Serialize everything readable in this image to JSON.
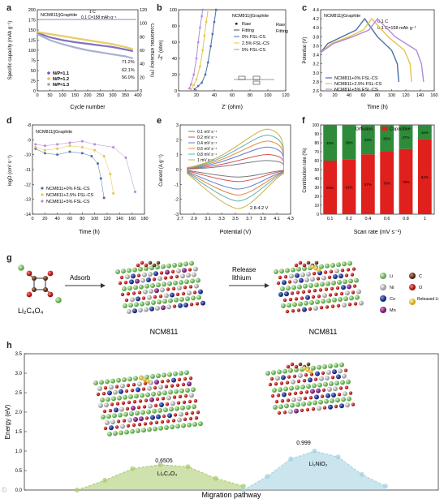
{
  "panels": {
    "a": {
      "letter": "a",
      "title": "NCM811||Graphite",
      "rate1": "1 C",
      "rate2": "0.1 C=158 mAh g⁻¹",
      "ylabel": "Specific capacity (mAh g⁻¹)",
      "ylabel_right": "Coulombic efficiency (%)",
      "xlabel": "Cycle number",
      "xticks": [
        "0",
        "50",
        "100",
        "150",
        "200",
        "250",
        "300",
        "350",
        "400"
      ],
      "yticks": [
        "0",
        "25",
        "50",
        "75",
        "100",
        "125",
        "150",
        "175",
        "200"
      ],
      "yticks_right": [
        "0",
        "20",
        "40",
        "60",
        "80",
        "100",
        "120"
      ],
      "legend": [
        "N/P=1.1",
        "N/P=1.2",
        "N/P=1.3"
      ],
      "annotations": [
        "71.2%",
        "62.1%",
        "56.0%"
      ],
      "colors": [
        "#6b5bb5",
        "#e8c34a",
        "#9aa3c7"
      ]
    },
    "b": {
      "letter": "b",
      "title": "NCM811||Graphite",
      "ylabel": "-Z'' (ohm)",
      "xlabel": "Z' (ohm)",
      "xticks": [
        "0",
        "20",
        "40",
        "60",
        "80",
        "100",
        "120"
      ],
      "yticks": [
        "0",
        "20",
        "40",
        "60",
        "80",
        "100"
      ],
      "legend": [
        "Raw",
        "Fitting",
        "0% FSL-CS",
        "2.5% FSL-CS",
        "5% FSL-CS"
      ],
      "side_labels": [
        "Raw",
        "Fitting"
      ],
      "colors": [
        "#4a6fa5",
        "#e8c34a",
        "#b48ad6"
      ]
    },
    "c": {
      "letter": "c",
      "title": "NCM811||Graphite",
      "rate1": "0.1 C",
      "rate2": "0.1 C=158 mAh g⁻¹",
      "ylabel": "Potential (V)",
      "xlabel": "Time (h)",
      "xticks": [
        "0",
        "20",
        "40",
        "60",
        "80",
        "100",
        "120",
        "140",
        "160"
      ],
      "yticks": [
        "2.6",
        "2.8",
        "3.0",
        "3.2",
        "3.4",
        "3.6",
        "3.8",
        "4.0",
        "4.2",
        "4.4"
      ],
      "legend": [
        "NCM811+0% FSL-CS",
        "NCM811+2.5% FSL-CS",
        "NCM811+5% FSL-CS"
      ],
      "colors": [
        "#4a6fa5",
        "#e8c34a",
        "#b48ad6"
      ]
    },
    "d": {
      "letter": "d",
      "title": "NCM811||Graphite",
      "ylabel": "logD (cm² s⁻¹)",
      "xlabel": "Time (h)",
      "xticks": [
        "0",
        "20",
        "40",
        "60",
        "80",
        "100",
        "120",
        "140",
        "160",
        "180"
      ],
      "yticks": [
        "-14",
        "-13",
        "-12",
        "-11",
        "-10",
        "-9",
        "-8"
      ],
      "legend": [
        "NCM811+0% FSL-CS",
        "NCM811+2.5% FSL-CS",
        "NCM811+5% FSL-CS"
      ],
      "colors": [
        "#4a6fa5",
        "#e8c34a",
        "#b48ad6"
      ]
    },
    "e": {
      "letter": "e",
      "ylabel": "Current (A g⁻¹)",
      "xlabel": "Potential (V)",
      "xticks": [
        "2.7",
        "2.9",
        "3.1",
        "3.3",
        "3.5",
        "3.7",
        "3.9",
        "4.1",
        "4.3"
      ],
      "yticks": [
        "-3",
        "-2",
        "-1",
        "0",
        "1",
        "2",
        "3"
      ],
      "legend": [
        "0.1 mV s⁻¹",
        "0.2 mV s⁻¹",
        "0.4 mV s⁻¹",
        "0.6 mV s⁻¹",
        "0.8 mV s⁻¹",
        "1 mV s⁻¹"
      ],
      "range_label": "2.8-4.2 V",
      "colors": [
        "#7a7a7a",
        "#d9534f",
        "#5b7bd5",
        "#e08a3c",
        "#5fb0b3",
        "#c9b14a"
      ]
    },
    "f": {
      "letter": "f",
      "ylabel": "Contribution rate (%)",
      "xlabel": "Scan rate (mV s⁻¹)",
      "legend": [
        "Diffusion",
        "Capacitive"
      ],
      "yticks": [
        "0",
        "10",
        "20",
        "30",
        "40",
        "50",
        "60",
        "70",
        "80",
        "90",
        "100"
      ],
      "colors": [
        "#2e8b3a",
        "#e0201c"
      ]
    },
    "g": {
      "letter": "g",
      "molecule_label": "Li₂C₄O₄",
      "arrow1": "Adsorb",
      "arrow2a": "Release",
      "arrow2b": "lithium",
      "struct1_label": "NCM811",
      "struct2_label": "NCM811",
      "elements": [
        {
          "name": "Li",
          "color": "#7dc36b"
        },
        {
          "name": "Ni",
          "color": "#c8c8c8"
        },
        {
          "name": "Co",
          "color": "#1f3fa8"
        },
        {
          "name": "Mn",
          "color": "#8e2c8e"
        },
        {
          "name": "C",
          "color": "#6b3a22"
        },
        {
          "name": "O",
          "color": "#d6201c"
        },
        {
          "name": "Released Li",
          "color": "#f2d34a"
        }
      ]
    },
    "h": {
      "letter": "h",
      "ylabel": "Energy (eV)",
      "xlabel": "Migration pathway",
      "yticks": [
        "0.0",
        "0.5",
        "1.0",
        "1.5",
        "2.0",
        "2.5",
        "3.0",
        "3.5"
      ],
      "barrier1_value": "0.6505",
      "barrier1_label": "Li₂C₄O₄",
      "barrier2_value": "0.999",
      "barrier2_label": "Li₂NiO₂",
      "colors": [
        "#a7c96a",
        "#9fd0de"
      ]
    }
  },
  "chart_data": [
    {
      "panel": "a",
      "type": "line",
      "xlabel": "Cycle number",
      "ylabel": "Specific capacity (mAh g⁻¹)",
      "xlim": [
        0,
        400
      ],
      "ylim": [
        0,
        200
      ],
      "series": [
        {
          "name": "N/P=1.1",
          "x": [
            0,
            50,
            100,
            150,
            200,
            250,
            300,
            350,
            380
          ],
          "y": [
            143,
            132,
            125,
            120,
            116,
            112,
            108,
            102,
            98
          ]
        },
        {
          "name": "N/P=1.2",
          "x": [
            0,
            50,
            100,
            150,
            200,
            250,
            300,
            350,
            380
          ],
          "y": [
            145,
            140,
            135,
            130,
            125,
            120,
            115,
            108,
            103
          ]
        },
        {
          "name": "N/P=1.3",
          "x": [
            0,
            50,
            100,
            150,
            200,
            250,
            300,
            350,
            380
          ],
          "y": [
            140,
            125,
            115,
            107,
            100,
            95,
            90,
            85,
            80
          ]
        }
      ],
      "coulombic_efficiency_pct": 100
    },
    {
      "panel": "b",
      "type": "scatter",
      "xlabel": "Z' (ohm)",
      "ylabel": "-Z'' (ohm)",
      "xlim": [
        0,
        120
      ],
      "ylim": [
        0,
        100
      ],
      "series": [
        {
          "name": "0% FSL-CS",
          "x": [
            18,
            22,
            26,
            30,
            33,
            36,
            38,
            40,
            42
          ],
          "y": [
            2,
            6,
            10,
            20,
            35,
            55,
            70,
            85,
            100
          ]
        },
        {
          "name": "2.5% FSL-CS",
          "x": [
            14,
            17,
            20,
            24,
            27,
            29,
            31,
            33
          ],
          "y": [
            2,
            7,
            14,
            30,
            50,
            68,
            85,
            100
          ]
        },
        {
          "name": "5% FSL-CS",
          "x": [
            12,
            14,
            17,
            20,
            22,
            24,
            26,
            27
          ],
          "y": [
            3,
            8,
            20,
            40,
            60,
            78,
            92,
            100
          ]
        }
      ]
    },
    {
      "panel": "c",
      "type": "line",
      "xlabel": "Time (h)",
      "ylabel": "Potential (V)",
      "xlim": [
        0,
        160
      ],
      "ylim": [
        2.6,
        4.4
      ],
      "series": [
        {
          "name": "NCM811+0% FSL-CS",
          "x": [
            0,
            10,
            30,
            50,
            62,
            80,
            100,
            108,
            110
          ],
          "y": [
            3.45,
            3.65,
            3.8,
            3.95,
            4.2,
            3.8,
            3.5,
            3.2,
            2.8
          ]
        },
        {
          "name": "NCM811+2.5% FSL-CS",
          "x": [
            0,
            15,
            40,
            60,
            72,
            95,
            118,
            126,
            128
          ],
          "y": [
            3.45,
            3.65,
            3.8,
            3.95,
            4.2,
            3.8,
            3.5,
            3.2,
            2.8
          ]
        },
        {
          "name": "NCM811+5% FSL-CS",
          "x": [
            0,
            18,
            45,
            68,
            80,
            105,
            135,
            142,
            145
          ],
          "y": [
            3.45,
            3.65,
            3.8,
            3.95,
            4.2,
            3.8,
            3.5,
            3.2,
            2.8
          ]
        }
      ]
    },
    {
      "panel": "d",
      "type": "scatter",
      "xlabel": "Time (h)",
      "ylabel": "logD (cm² s⁻¹)",
      "xlim": [
        0,
        180
      ],
      "ylim": [
        -14,
        -8
      ],
      "series": [
        {
          "name": "NCM811+0% FSL-CS",
          "x": [
            5,
            20,
            40,
            60,
            80,
            95,
            105,
            110,
            115
          ],
          "y": [
            -9.6,
            -9.9,
            -10.0,
            -9.8,
            -9.9,
            -10.1,
            -10.6,
            -11.6,
            -12.9
          ]
        },
        {
          "name": "NCM811+2.5% FSL-CS",
          "x": [
            5,
            20,
            40,
            60,
            80,
            100,
            115,
            125,
            130
          ],
          "y": [
            -9.5,
            -9.7,
            -9.6,
            -9.4,
            -9.5,
            -9.7,
            -10.1,
            -11.3,
            -12.6
          ]
        },
        {
          "name": "NCM811+5% FSL-CS",
          "x": [
            5,
            20,
            40,
            60,
            80,
            100,
            130,
            150,
            165
          ],
          "y": [
            -9.3,
            -9.4,
            -9.3,
            -9.2,
            -9.1,
            -9.3,
            -9.5,
            -10.2,
            -12.5
          ]
        }
      ]
    },
    {
      "panel": "e",
      "type": "line",
      "xlabel": "Potential (V)",
      "ylabel": "Current (A g⁻¹)",
      "xlim": [
        2.7,
        4.3
      ],
      "ylim": [
        -3,
        3
      ],
      "series": [
        {
          "name": "0.1 mV s⁻¹",
          "peak_anodic": 0.6,
          "peak_cathodic": -0.5
        },
        {
          "name": "0.2 mV s⁻¹",
          "peak_anodic": 1.0,
          "peak_cathodic": -0.8
        },
        {
          "name": "0.4 mV s⁻¹",
          "peak_anodic": 1.5,
          "peak_cathodic": -1.3
        },
        {
          "name": "0.6 mV s⁻¹",
          "peak_anodic": 1.9,
          "peak_cathodic": -1.7
        },
        {
          "name": "0.8 mV s⁻¹",
          "peak_anodic": 2.3,
          "peak_cathodic": -2.1
        },
        {
          "name": "1 mV s⁻¹",
          "peak_anodic": 2.7,
          "peak_cathodic": -2.6
        }
      ]
    },
    {
      "panel": "f",
      "type": "bar",
      "xlabel": "Scan rate (mV s⁻¹)",
      "ylabel": "Contribution rate (%)",
      "categories": [
        "0.1",
        "0.2",
        "0.4",
        "0.6",
        "0.8",
        "1"
      ],
      "ylim": [
        0,
        100
      ],
      "series": [
        {
          "name": "Capacitive",
          "values": [
            60,
            61,
            67,
            70,
            73,
            84
          ]
        },
        {
          "name": "Diffusion",
          "values": [
            40,
            39,
            33,
            30,
            27,
            16
          ]
        }
      ],
      "bar_labels_capacitive": [
        "60%",
        "61%",
        "67%",
        "70%",
        "73%",
        "84%"
      ],
      "bar_labels_diffusion": [
        "40%",
        "39%",
        "33%",
        "30%",
        "27%",
        "16%"
      ]
    },
    {
      "panel": "h",
      "type": "line",
      "xlabel": "Migration pathway",
      "ylabel": "Energy (eV)",
      "ylim": [
        0,
        3.5
      ],
      "series": [
        {
          "name": "Li₂C₄O₄",
          "y": [
            0.0,
            0.25,
            0.55,
            0.65,
            0.6,
            0.3,
            0.1
          ],
          "barrier": 0.6505
        },
        {
          "name": "Li₂NiO₂",
          "y": [
            0.0,
            0.35,
            0.8,
            0.999,
            0.85,
            0.4,
            0.1
          ],
          "barrier": 0.999
        }
      ]
    }
  ]
}
